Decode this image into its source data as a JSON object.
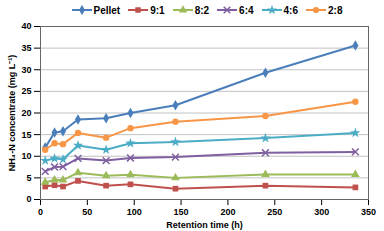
{
  "chart_data": {
    "type": "line",
    "x_label": "Retention time (h)",
    "y_label": "NH₄-N concentrate (mg L⁻¹)",
    "x": [
      5,
      15,
      24,
      40,
      70,
      96,
      144,
      240,
      336
    ],
    "series": [
      {
        "name": "Pellet",
        "color": "#4a7ebb",
        "marker": "diamond",
        "values": [
          12,
          15.5,
          15.8,
          18.5,
          18.8,
          20,
          21.8,
          29.3,
          35.6
        ]
      },
      {
        "name": "9:1",
        "color": "#c0504d",
        "marker": "square",
        "values": [
          3,
          3.3,
          3,
          4.3,
          3.2,
          3.5,
          2.5,
          3.2,
          2.8
        ]
      },
      {
        "name": "8:2",
        "color": "#9bbb59",
        "marker": "triangle",
        "values": [
          4,
          4.5,
          4.5,
          6.2,
          5.5,
          5.7,
          5,
          5.8,
          5.8
        ]
      },
      {
        "name": "6:4",
        "color": "#7f5f9f",
        "marker": "times",
        "values": [
          6.5,
          7.5,
          7.6,
          9.5,
          9,
          9.6,
          9.8,
          10.8,
          11
        ]
      },
      {
        "name": "4:6",
        "color": "#4bacc6",
        "marker": "star",
        "values": [
          9,
          9.5,
          9.3,
          12.5,
          11.5,
          13,
          13.3,
          14.2,
          15.4
        ]
      },
      {
        "name": "2:8",
        "color": "#f79646",
        "marker": "circle",
        "values": [
          11.5,
          13,
          12.8,
          15.4,
          14.3,
          16.5,
          18,
          19.3,
          22.6
        ]
      }
    ],
    "xlim": [
      0,
      350
    ],
    "xticks": [
      0,
      50,
      100,
      150,
      200,
      250,
      300,
      350
    ],
    "ylim": [
      0,
      40
    ],
    "yticks": [
      0,
      5,
      10,
      15,
      20,
      25,
      30,
      35,
      40
    ],
    "grid": true,
    "legend": "top"
  }
}
